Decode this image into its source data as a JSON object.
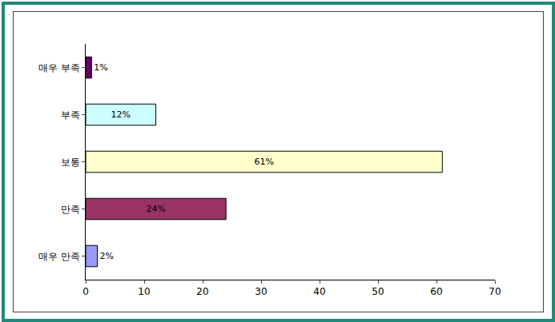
{
  "chart_data": {
    "type": "bar",
    "orientation": "horizontal",
    "categories": [
      "매우 부족",
      "부족",
      "보통",
      "만족",
      "매우 만족"
    ],
    "values": [
      1,
      12,
      61,
      24,
      2
    ],
    "value_labels": [
      "1%",
      "12%",
      "61%",
      "24%",
      "2%"
    ],
    "colors": [
      "#660066",
      "#ccffff",
      "#ffffcc",
      "#993366",
      "#9999ff"
    ],
    "xlim": [
      0,
      70
    ],
    "xticks": [
      0,
      10,
      20,
      30,
      40,
      50,
      60,
      70
    ],
    "grid": false,
    "data_labels": true
  }
}
